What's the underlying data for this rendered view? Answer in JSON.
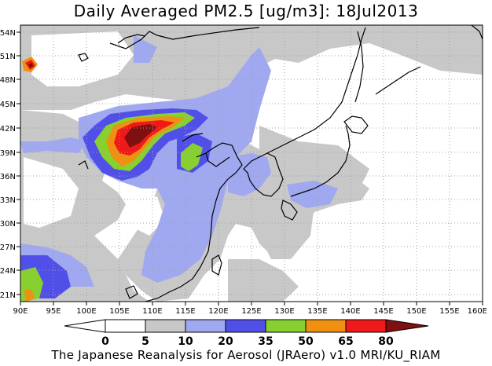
{
  "title": "Daily Averaged PM2.5 [ug/m3]: 18Jul2013",
  "footer": "The Japanese Reanalysis for Aerosol (JRAero) v1.0 MRI/KU_RIAM",
  "lon_ticks": [
    "90E",
    "95E",
    "100E",
    "105E",
    "110E",
    "115E",
    "120E",
    "125E",
    "130E",
    "135E",
    "140E",
    "145E",
    "150E",
    "155E",
    "160E"
  ],
  "lat_ticks": [
    "21N",
    "24N",
    "27N",
    "30N",
    "33N",
    "36N",
    "39N",
    "42N",
    "45N",
    "48N",
    "51N",
    "54N"
  ],
  "colorbar": {
    "labels": [
      "0",
      "5",
      "10",
      "20",
      "35",
      "50",
      "65",
      "80"
    ],
    "colors": [
      "#ffffff",
      "#c8c8c8",
      "#a0a8f0",
      "#5050e8",
      "#88d030",
      "#f09010",
      "#f01818",
      "#801010"
    ]
  },
  "colors": {
    "land_outline": "#000000",
    "grid": "#a0a0a0"
  }
}
